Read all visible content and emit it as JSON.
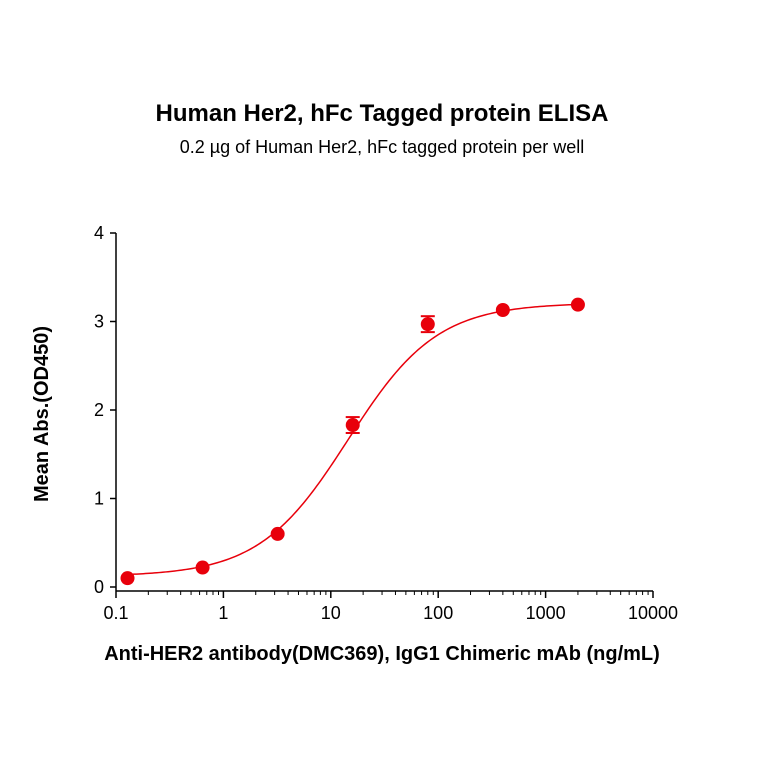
{
  "chart_data": {
    "type": "scatter",
    "title": "Human Her2, hFc Tagged protein ELISA",
    "subtitle": "0.2 µg of Human Her2, hFc tagged protein per well",
    "xlabel": "Anti-HER2 antibody(DMC369), IgG1 Chimeric mAb (ng/mL)",
    "ylabel": "Mean Abs.(OD450)",
    "x_scale": "log",
    "xlim": [
      0.1,
      10000
    ],
    "ylim": [
      0,
      4
    ],
    "x_ticks": [
      0.1,
      1,
      10,
      100,
      1000,
      10000
    ],
    "x_tick_labels": [
      "0.1",
      "1",
      "10",
      "100",
      "1000",
      "10000"
    ],
    "y_ticks": [
      0,
      1,
      2,
      3,
      4
    ],
    "y_tick_labels": [
      "0",
      "1",
      "2",
      "3",
      "4"
    ],
    "grid": false,
    "color": "#e8000b",
    "points": [
      {
        "x": 0.128,
        "y": 0.1,
        "err": 0.0
      },
      {
        "x": 0.64,
        "y": 0.22,
        "err": 0.0
      },
      {
        "x": 3.2,
        "y": 0.6,
        "err": 0.0
      },
      {
        "x": 16,
        "y": 1.83,
        "err": 0.09
      },
      {
        "x": 80,
        "y": 2.97,
        "err": 0.09
      },
      {
        "x": 400,
        "y": 3.13,
        "err": 0.0
      },
      {
        "x": 2000,
        "y": 3.19,
        "err": 0.0
      }
    ],
    "fit": {
      "model": "4PL",
      "bottom": 0.12,
      "top": 3.21,
      "ec50": 14.5,
      "hill": 1.05
    }
  }
}
